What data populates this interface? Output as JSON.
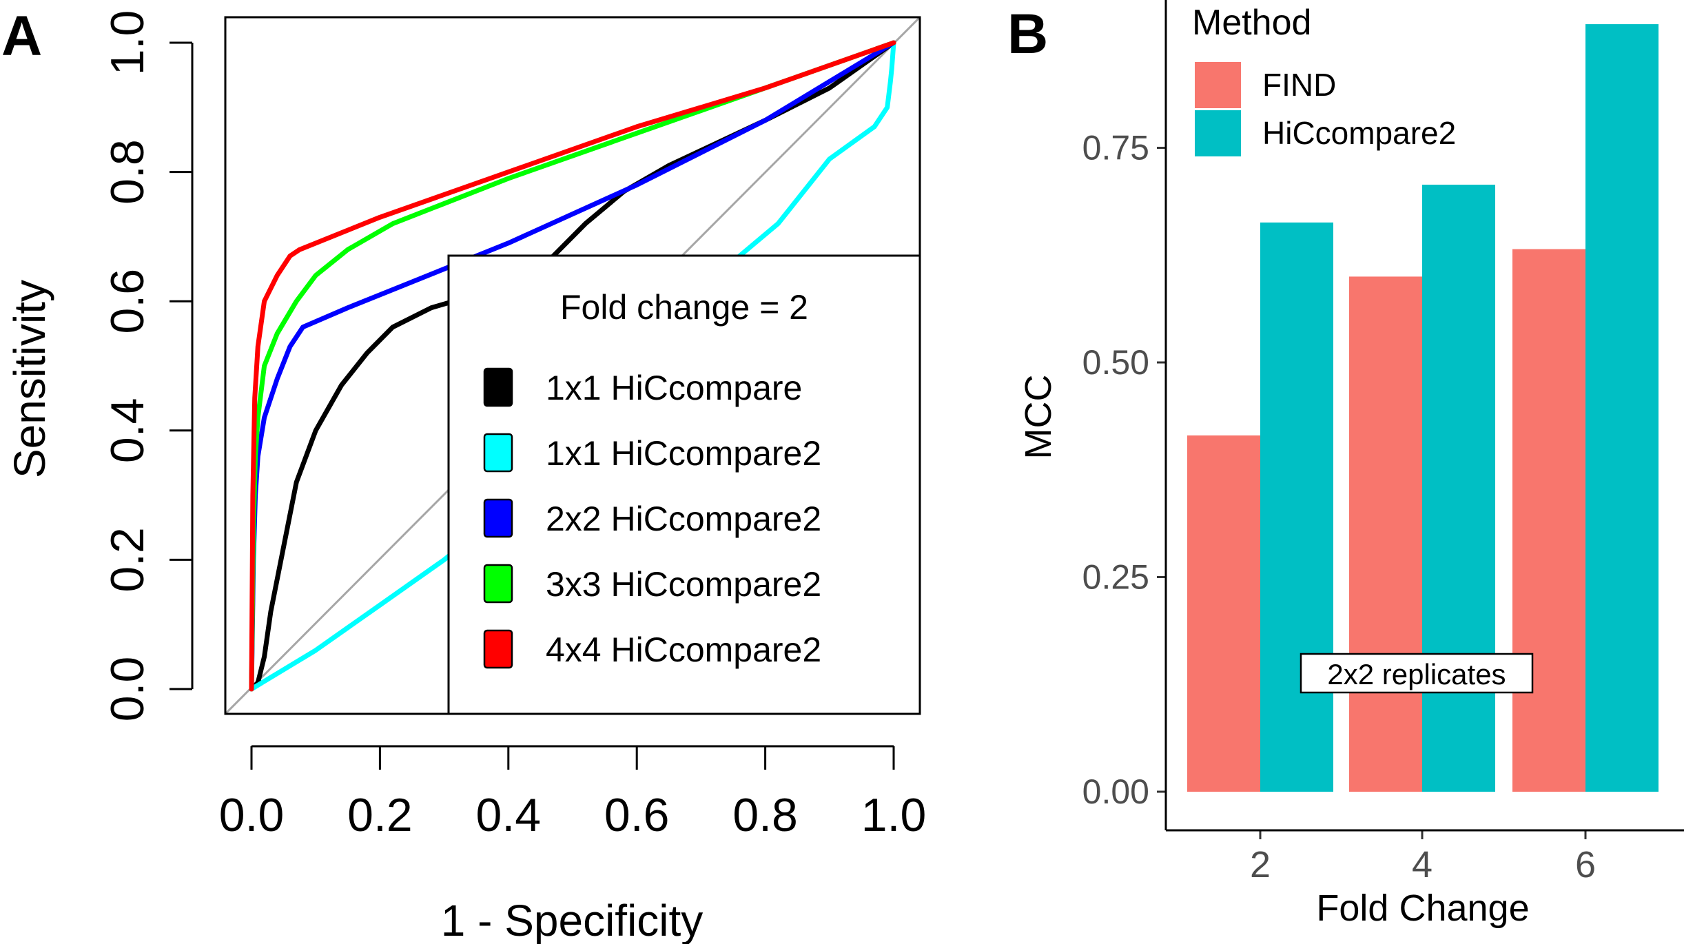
{
  "chart_data": [
    {
      "type": "line",
      "panel_label": "A",
      "xlabel": "1 - Specificity",
      "ylabel": "Sensitivity",
      "xlim": [
        0,
        1
      ],
      "ylim": [
        0,
        1
      ],
      "x_ticks": [
        "0.0",
        "0.2",
        "0.4",
        "0.6",
        "0.8",
        "1.0"
      ],
      "y_ticks": [
        "0.0",
        "0.2",
        "0.4",
        "0.6",
        "0.8",
        "1.0"
      ],
      "diagonal_reference": true,
      "legend": {
        "title": "Fold change = 2",
        "placement": "bottom-right"
      },
      "series": [
        {
          "name": "1x1 HiCcompare",
          "color": "#000000",
          "points": [
            [
              0,
              0
            ],
            [
              0.01,
              0.01
            ],
            [
              0.02,
              0.05
            ],
            [
              0.03,
              0.12
            ],
            [
              0.05,
              0.22
            ],
            [
              0.07,
              0.32
            ],
            [
              0.1,
              0.4
            ],
            [
              0.14,
              0.47
            ],
            [
              0.18,
              0.52
            ],
            [
              0.22,
              0.56
            ],
            [
              0.28,
              0.59
            ],
            [
              0.35,
              0.61
            ],
            [
              0.45,
              0.65
            ],
            [
              0.52,
              0.72
            ],
            [
              0.58,
              0.77
            ],
            [
              0.65,
              0.81
            ],
            [
              0.8,
              0.88
            ],
            [
              0.9,
              0.93
            ],
            [
              1,
              1
            ]
          ]
        },
        {
          "name": "1x1 HiCcompare2",
          "color": "#00FFFF",
          "points": [
            [
              0,
              0
            ],
            [
              0.1,
              0.06
            ],
            [
              0.2,
              0.13
            ],
            [
              0.3,
              0.2
            ],
            [
              0.4,
              0.28
            ],
            [
              0.5,
              0.38
            ],
            [
              0.6,
              0.48
            ],
            [
              0.7,
              0.6
            ],
            [
              0.76,
              0.67
            ],
            [
              0.82,
              0.72
            ],
            [
              0.9,
              0.82
            ],
            [
              0.97,
              0.87
            ],
            [
              0.99,
              0.9
            ],
            [
              0.995,
              0.94
            ],
            [
              0.997,
              0.96
            ],
            [
              1,
              1
            ]
          ]
        },
        {
          "name": "2x2 HiCcompare2",
          "color": "#0000FF",
          "points": [
            [
              0,
              0
            ],
            [
              0.003,
              0.2
            ],
            [
              0.006,
              0.3
            ],
            [
              0.01,
              0.36
            ],
            [
              0.02,
              0.42
            ],
            [
              0.04,
              0.48
            ],
            [
              0.06,
              0.53
            ],
            [
              0.08,
              0.56
            ],
            [
              0.15,
              0.59
            ],
            [
              0.25,
              0.63
            ],
            [
              0.4,
              0.69
            ],
            [
              0.6,
              0.78
            ],
            [
              0.8,
              0.88
            ],
            [
              1,
              1
            ]
          ]
        },
        {
          "name": "3x3 HiCcompare2",
          "color": "#00FF00",
          "points": [
            [
              0,
              0
            ],
            [
              0.003,
              0.25
            ],
            [
              0.006,
              0.36
            ],
            [
              0.01,
              0.42
            ],
            [
              0.02,
              0.5
            ],
            [
              0.04,
              0.55
            ],
            [
              0.07,
              0.6
            ],
            [
              0.1,
              0.64
            ],
            [
              0.15,
              0.68
            ],
            [
              0.22,
              0.72
            ],
            [
              0.4,
              0.79
            ],
            [
              0.6,
              0.86
            ],
            [
              0.8,
              0.93
            ],
            [
              1,
              1
            ]
          ]
        },
        {
          "name": "4x4 HiCcompare2",
          "color": "#FF0000",
          "points": [
            [
              0,
              0
            ],
            [
              0.002,
              0.3
            ],
            [
              0.005,
              0.45
            ],
            [
              0.01,
              0.53
            ],
            [
              0.02,
              0.6
            ],
            [
              0.04,
              0.64
            ],
            [
              0.06,
              0.67
            ],
            [
              0.075,
              0.68
            ],
            [
              0.2,
              0.73
            ],
            [
              0.4,
              0.8
            ],
            [
              0.6,
              0.87
            ],
            [
              0.8,
              0.93
            ],
            [
              1,
              1
            ]
          ]
        }
      ]
    },
    {
      "type": "bar",
      "panel_label": "B",
      "xlabel": "Fold Change",
      "ylabel": "MCC",
      "categories": [
        "2",
        "4",
        "6"
      ],
      "ylim": [
        0,
        0.9
      ],
      "y_ticks": [
        "0.00",
        "0.25",
        "0.50",
        "0.75"
      ],
      "y_tick_values": [
        0,
        0.25,
        0.5,
        0.75
      ],
      "legend": {
        "title": "Method",
        "placement": "top-left"
      },
      "annotation": "2x2 replicates",
      "series": [
        {
          "name": "FIND",
          "color": "#F8766D",
          "values": [
            0.415,
            0.6,
            0.632
          ]
        },
        {
          "name": "HiCcompare2",
          "color": "#00BFC4",
          "values": [
            0.663,
            0.707,
            0.894
          ]
        }
      ]
    }
  ]
}
